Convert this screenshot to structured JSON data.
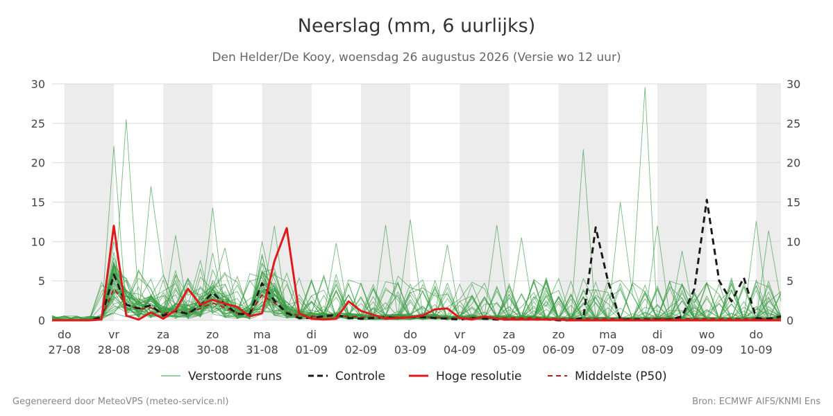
{
  "header": {
    "title": "Neerslag (mm, 6 uurlijks)",
    "subtitle": "Den Helder/De Kooy, woensdag 26 augustus 2026 (Versie wo 12 uur)"
  },
  "footer": {
    "left": "Gegenereerd door MeteoVPS (meteo-service.nl)",
    "right": "Bron: ECMWF AIFS/KNMI Ens"
  },
  "chart_data": {
    "type": "line",
    "ylim": [
      0,
      30
    ],
    "y_ticks": [
      "0",
      "5",
      "10",
      "15",
      "20",
      "25",
      "30"
    ],
    "x_unit": "days since Thu 27-08 00h (6-hourly steps)",
    "xlim": [
      -0.25,
      14.5
    ],
    "x_tick_labels": [
      {
        "day": "do",
        "date": "27-08"
      },
      {
        "day": "vr",
        "date": "28-08"
      },
      {
        "day": "za",
        "date": "29-08"
      },
      {
        "day": "zo",
        "date": "30-08"
      },
      {
        "day": "ma",
        "date": "31-08"
      },
      {
        "day": "di",
        "date": "01-09"
      },
      {
        "day": "wo",
        "date": "02-09"
      },
      {
        "day": "do",
        "date": "03-09"
      },
      {
        "day": "vr",
        "date": "04-09"
      },
      {
        "day": "za",
        "date": "05-09"
      },
      {
        "day": "zo",
        "date": "06-09"
      },
      {
        "day": "ma",
        "date": "07-09"
      },
      {
        "day": "di",
        "date": "08-09"
      },
      {
        "day": "wo",
        "date": "09-09"
      },
      {
        "day": "do",
        "date": "10-09"
      }
    ],
    "grid": true,
    "night_bands": true,
    "legend_position": "bottom",
    "colors": {
      "ensemble": "#3a9c45",
      "control": "#1a1a1a",
      "high_res": "#e0191b",
      "median": "#b3201c",
      "band": "#ececec",
      "grid": "#d9d9d9"
    },
    "series": [
      {
        "name": "Controle",
        "x": [
          -0.25,
          0,
          0.25,
          0.5,
          0.75,
          1,
          1.25,
          1.5,
          1.75,
          2,
          2.25,
          2.5,
          2.75,
          3,
          3.25,
          3.5,
          3.75,
          4,
          4.25,
          4.5,
          4.75,
          5,
          5.25,
          5.5,
          5.75,
          6,
          6.25,
          6.5,
          6.75,
          7,
          7.25,
          7.5,
          7.75,
          8,
          8.25,
          8.5,
          8.75,
          9,
          9.25,
          9.5,
          9.75,
          10,
          10.25,
          10.5,
          10.75,
          11,
          11.25,
          11.5,
          11.75,
          12,
          12.25,
          12.5,
          12.75,
          13,
          13.25,
          13.5,
          13.75,
          14,
          14.25,
          14.5
        ],
        "values": [
          0,
          0,
          0,
          0,
          0.4,
          5.8,
          2.0,
          1.5,
          1.9,
          0.6,
          1.2,
          0.8,
          1.9,
          3.5,
          2.0,
          0.8,
          0.8,
          4.7,
          2.5,
          0.9,
          0.3,
          0.3,
          0.5,
          0.7,
          0.3,
          0.2,
          0.3,
          0.4,
          0.3,
          0.4,
          0.4,
          0.3,
          0.2,
          0.1,
          0.3,
          0.2,
          0.1,
          0.1,
          0.1,
          0.1,
          0.1,
          0,
          0,
          0.3,
          11.8,
          5.0,
          0.1,
          0.1,
          0.1,
          0.1,
          0.1,
          0.5,
          4.0,
          15.3,
          5.0,
          2.4,
          5.4,
          0.3,
          0.2,
          0.5
        ]
      },
      {
        "name": "Hoge resolutie",
        "x": [
          -0.25,
          0,
          0.25,
          0.5,
          0.75,
          1,
          1.25,
          1.5,
          1.75,
          2,
          2.25,
          2.5,
          2.75,
          3,
          3.25,
          3.5,
          3.75,
          4,
          4.25,
          4.5,
          4.75,
          5,
          5.25,
          5.5,
          5.75,
          6,
          6.25,
          6.5,
          6.75,
          7,
          7.25,
          7.5,
          7.75,
          8,
          8.25,
          8.5,
          8.75,
          9,
          9.25,
          9.5,
          9.75,
          10,
          10.25,
          10.5,
          10.75,
          11,
          11.25,
          11.5,
          11.75,
          12,
          12.25,
          12.5,
          12.75,
          13,
          13.25,
          13.5,
          13.75,
          14,
          14.25,
          14.5
        ],
        "values": [
          0,
          0,
          0,
          0,
          0.1,
          12.0,
          0.6,
          0.1,
          1.0,
          0.2,
          1.3,
          4.0,
          2.0,
          2.6,
          2.1,
          1.7,
          0.5,
          0.9,
          7.5,
          11.7,
          0.9,
          0.2,
          0.1,
          0.2,
          2.4,
          1.2,
          0.7,
          0.2,
          0.3,
          0.4,
          0.6,
          1.4,
          1.5,
          0.3,
          0.1,
          0.5,
          0.2,
          0.1,
          0.1,
          0.1,
          0.1,
          0.1,
          0,
          0,
          0,
          0,
          0,
          0,
          0,
          0,
          0,
          0,
          0,
          0,
          0,
          0,
          0,
          0,
          0,
          0
        ]
      },
      {
        "name": "Middelste (P50)",
        "x": [
          -0.25,
          0,
          0.25,
          0.5,
          0.75,
          1,
          1.25,
          1.5,
          1.75,
          2,
          2.25,
          2.5,
          2.75,
          3,
          3.25,
          3.5,
          3.75,
          4,
          4.25,
          4.5,
          4.75,
          5,
          5.25,
          5.5,
          5.75,
          6,
          6.25,
          6.5,
          6.75,
          7,
          7.25,
          7.5,
          7.75,
          8,
          8.25,
          8.5,
          8.75,
          9,
          9.25,
          9.5,
          9.75,
          10,
          10.25,
          10.5,
          10.75,
          11,
          11.25,
          11.5,
          11.75,
          12,
          12.25,
          12.5,
          12.75,
          13,
          13.25,
          13.5,
          13.75,
          14,
          14.25,
          14.5
        ],
        "values": [
          0,
          0,
          0,
          0,
          0.3,
          4.0,
          2.0,
          1.4,
          1.6,
          0.9,
          1.1,
          1.0,
          1.5,
          2.2,
          1.6,
          0.9,
          0.8,
          3.2,
          2.2,
          1.0,
          0.6,
          0.5,
          0.5,
          0.5,
          0.5,
          0.4,
          0.4,
          0.4,
          0.4,
          0.4,
          0.4,
          0.4,
          0.3,
          0.3,
          0.3,
          0.3,
          0.3,
          0.3,
          0.3,
          0.3,
          0.2,
          0.2,
          0.2,
          0.2,
          0.2,
          0.2,
          0.2,
          0.2,
          0.2,
          0.2,
          0.2,
          0.2,
          0.2,
          0.2,
          0.2,
          0.2,
          0.2,
          0.2,
          0.2,
          0.3
        ]
      }
    ],
    "ensemble_peaks": [
      {
        "x": 1.0,
        "y": 22.1
      },
      {
        "x": 1.25,
        "y": 25.5
      },
      {
        "x": 1.75,
        "y": 17.0
      },
      {
        "x": 2.25,
        "y": 10.8
      },
      {
        "x": 3.0,
        "y": 14.3
      },
      {
        "x": 3.25,
        "y": 9.2
      },
      {
        "x": 4.25,
        "y": 12.0
      },
      {
        "x": 5.5,
        "y": 9.8
      },
      {
        "x": 6.5,
        "y": 12.1
      },
      {
        "x": 7.0,
        "y": 12.8
      },
      {
        "x": 7.75,
        "y": 9.6
      },
      {
        "x": 8.75,
        "y": 12.1
      },
      {
        "x": 9.25,
        "y": 10.5
      },
      {
        "x": 10.5,
        "y": 21.7
      },
      {
        "x": 11.25,
        "y": 15.0
      },
      {
        "x": 11.75,
        "y": 29.6
      },
      {
        "x": 12.0,
        "y": 12.0
      },
      {
        "x": 12.5,
        "y": 8.8
      },
      {
        "x": 14.0,
        "y": 12.6
      },
      {
        "x": 14.25,
        "y": 11.4
      }
    ],
    "legend": [
      {
        "label": "Verstoorde runs",
        "style": "ensemble"
      },
      {
        "label": "Controle",
        "style": "control"
      },
      {
        "label": "Hoge resolutie",
        "style": "high_res"
      },
      {
        "label": "Middelste (P50)",
        "style": "median"
      }
    ]
  }
}
